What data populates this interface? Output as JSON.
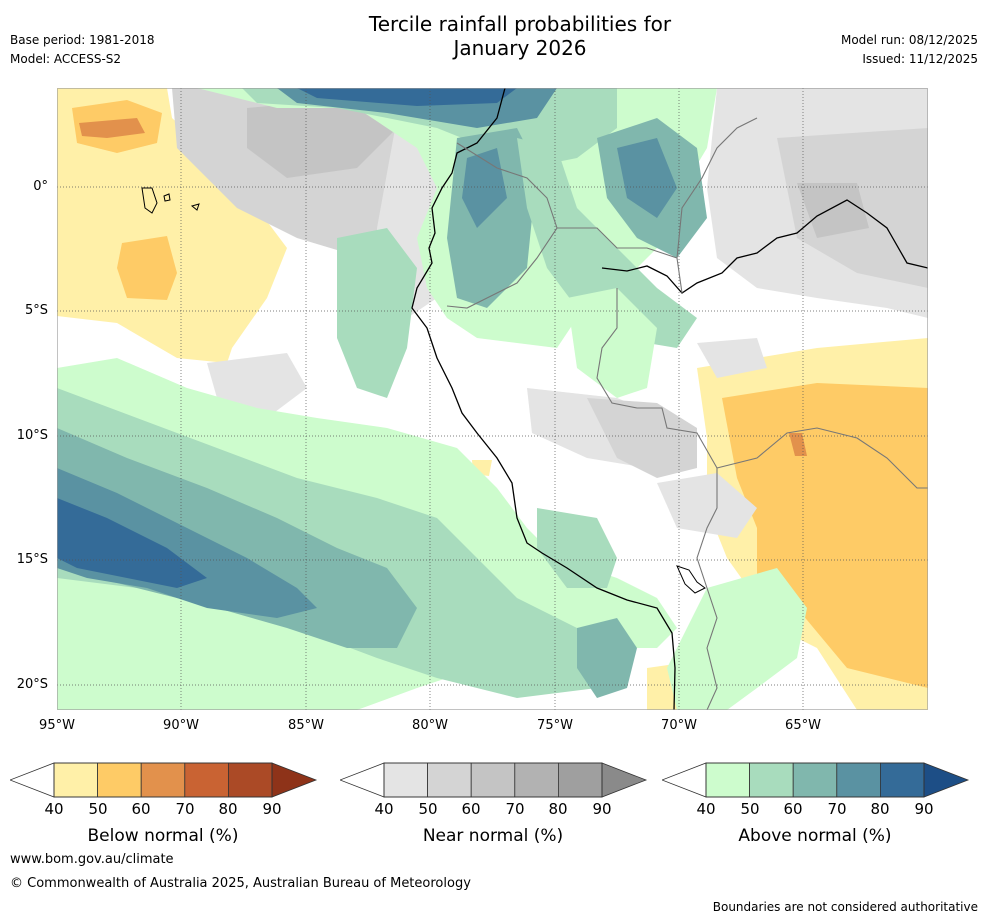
{
  "header": {
    "title_line1": "Tercile rainfall probabilities for",
    "title_line2": "January 2026",
    "base_period": "Base period: 1981-2018",
    "model": "Model: ACCESS-S2",
    "model_run": "Model run: 08/12/2025",
    "issued": "Issued: 11/12/2025"
  },
  "map": {
    "lat_labels": [
      "0°",
      "5°S",
      "10°S",
      "15°S",
      "20°S"
    ],
    "lon_labels": [
      "95°W",
      "90°W",
      "85°W",
      "80°W",
      "75°W",
      "70°W",
      "65°W"
    ]
  },
  "legend": {
    "below": {
      "label": "Below normal (%)",
      "ticks": [
        "40",
        "50",
        "60",
        "70",
        "80",
        "90"
      ],
      "colors": [
        "#fff0a8",
        "#fecb66",
        "#e2914c",
        "#c96333",
        "#ab4a26",
        "#8e3319"
      ]
    },
    "near": {
      "label": "Near normal (%)",
      "ticks": [
        "40",
        "50",
        "60",
        "70",
        "80",
        "90"
      ],
      "colors": [
        "#e4e4e4",
        "#d4d4d4",
        "#c4c4c4",
        "#b2b2b2",
        "#9f9f9f",
        "#8a8a8a"
      ]
    },
    "above": {
      "label": "Above normal (%)",
      "ticks": [
        "40",
        "50",
        "60",
        "70",
        "80",
        "90"
      ],
      "colors": [
        "#cdfccd",
        "#a8dcbd",
        "#80b7ad",
        "#5a92a2",
        "#346b98",
        "#1d4e86"
      ]
    }
  },
  "footer": {
    "website": "www.bom.gov.au/climate",
    "copyright": "© Commonwealth of Australia 2025, Australian Bureau of Meteorology",
    "disclaimer": "Boundaries are not considered authoritative"
  }
}
